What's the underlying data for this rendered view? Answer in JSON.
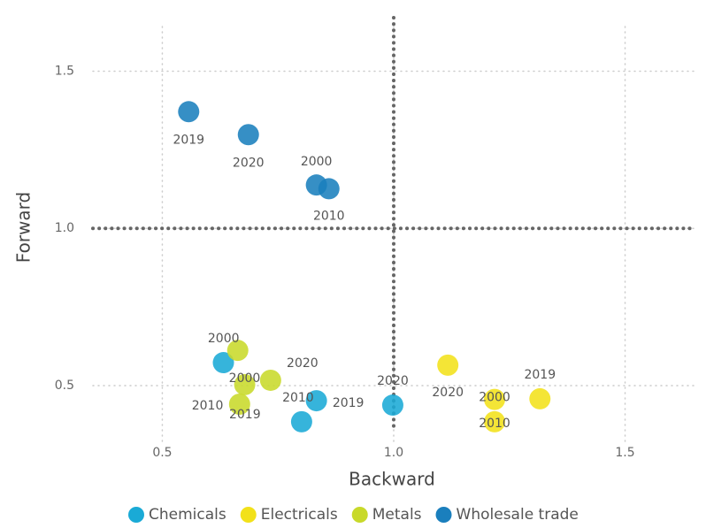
{
  "chart_data": {
    "type": "scatter",
    "x_label": "Backward",
    "y_label": "Forward",
    "xlim": [
      0.35,
      1.65
    ],
    "ylim": [
      0.32,
      1.67
    ],
    "xticks": [
      {
        "value": 0.5,
        "label": "0.5"
      },
      {
        "value": 1.0,
        "label": "1.0"
      },
      {
        "value": 1.5,
        "label": "1.5"
      }
    ],
    "yticks": [
      {
        "value": 0.5,
        "label": "0.5"
      },
      {
        "value": 1.0,
        "label": "1.0"
      },
      {
        "value": 1.5,
        "label": "1.5"
      }
    ],
    "grid": true,
    "legend": "bottom",
    "reference_lines": {
      "x": 1.0,
      "y": 1.0
    },
    "series": [
      {
        "name": "Chemicals",
        "color": "#1aaad6",
        "x": [
          0.632,
          0.801,
          0.833,
          0.998
        ],
        "values": [
          0.573,
          0.385,
          0.452,
          0.438
        ],
        "labels": [
          "2000",
          "2010",
          "2019",
          "2020"
        ]
      },
      {
        "name": "Electricals",
        "color": "#f2e11a",
        "x": [
          1.117,
          1.218,
          1.218,
          1.316
        ],
        "values": [
          0.565,
          0.456,
          0.385,
          0.458
        ],
        "labels": [
          "2020",
          "2000",
          "2010",
          "2019"
        ]
      },
      {
        "name": "Metals",
        "color": "#c8d92a",
        "x": [
          0.663,
          0.678,
          0.667,
          0.734
        ],
        "values": [
          0.612,
          0.503,
          0.441,
          0.517
        ],
        "labels": [
          "2000",
          "2010",
          "2019",
          "2020"
        ]
      },
      {
        "name": "Wholesale trade",
        "color": "#1a7fbd",
        "x": [
          0.557,
          0.686,
          0.833,
          0.86
        ],
        "values": [
          1.371,
          1.298,
          1.138,
          1.126
        ],
        "labels": [
          "2019",
          "2020",
          "2000",
          "2010"
        ]
      }
    ]
  }
}
